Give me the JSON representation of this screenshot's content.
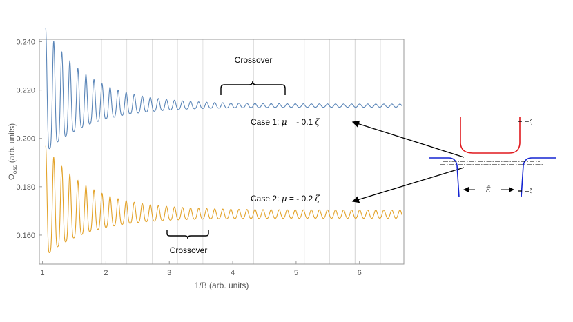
{
  "colors": {
    "series1": "#5b86b8",
    "series2": "#e3a32a",
    "axis": "#999999",
    "grid": "#d3d3d3",
    "inset_upper": "#e0191e",
    "inset_lower": "#1525d2"
  },
  "chart_data": {
    "type": "line",
    "xlabel": "1/B (arb. units)",
    "ylabel_main": "Ω",
    "ylabel_sub": "osc",
    "ylabel_rest": " (arb. units)",
    "xlim": [
      0.95,
      6.7
    ],
    "ylim": [
      0.148,
      0.241
    ],
    "xticks": [
      1,
      2,
      3,
      4,
      5,
      6
    ],
    "yticks": [
      0.16,
      0.18,
      0.2,
      0.22,
      0.24
    ],
    "ytick_labels": [
      "0.160",
      "0.180",
      "0.200",
      "0.220",
      "0.240"
    ],
    "grid_x": [
      1.93,
      2.33,
      2.73,
      3.13,
      3.53,
      4.33,
      5.13,
      5.53,
      5.93,
      6.33
    ],
    "series": [
      {
        "label": "Case 1",
        "mean": 0.2135,
        "amp_start": 0.025,
        "decay": 1.45,
        "amp_floor": 0.00065,
        "x_start": 1.05,
        "x_end": 6.67,
        "period": 0.127
      },
      {
        "label": "Case 2",
        "mean": 0.1685,
        "amp_start": 0.021,
        "decay": 1.5,
        "amp_floor": 0.0017,
        "x_start": 1.05,
        "x_end": 6.67,
        "period": 0.127
      }
    ],
    "annotations": {
      "crossover_top": "Crossover",
      "crossover_bottom": "Crossover",
      "case1_text": "Case 1: ",
      "case1_mu": "μ",
      "case1_rest": " = - 0.1 ",
      "case1_zeta": "ζ",
      "case2_text": "Case 2: ",
      "case2_mu": "μ",
      "case2_rest": " = - 0.2 ",
      "case2_zeta": "ζ"
    }
  },
  "inset": {
    "plus_zeta": "+ζ",
    "minus_zeta": "−ζ",
    "e_tilde": "Ẽ"
  }
}
